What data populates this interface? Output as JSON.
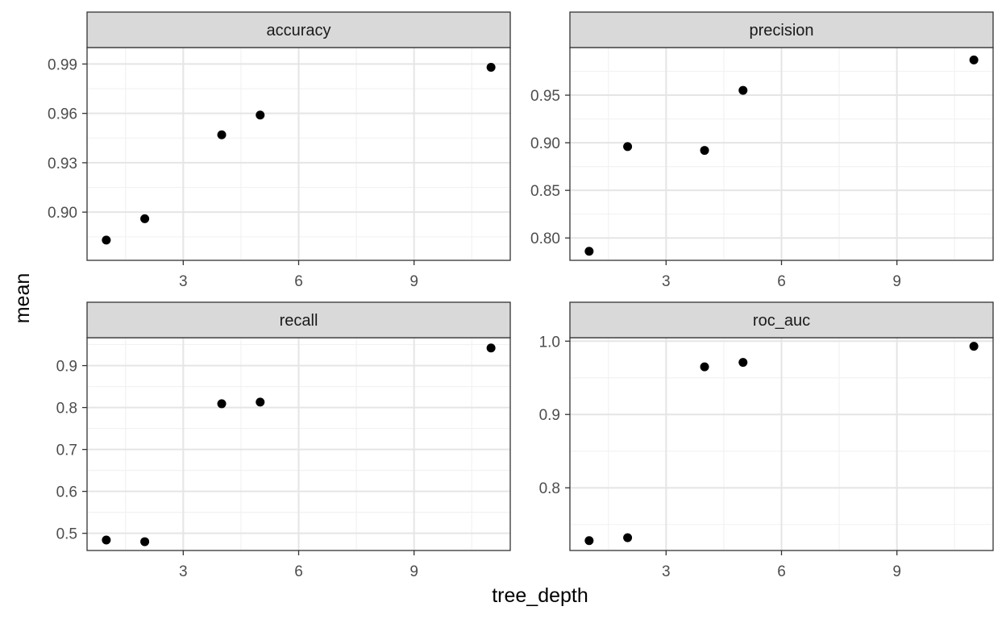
{
  "chart_data": {
    "type": "scatter",
    "xlabel": "tree_depth",
    "ylabel": "mean",
    "grid": true,
    "colors": {
      "point": "#000000",
      "strip_fill": "#d9d9d9",
      "strip_border": "#333333",
      "grid_major": "#e5e5e5",
      "grid_minor": "#f2f2f2",
      "panel_border": "#333333",
      "tick_text": "#4d4d4d"
    },
    "panels": [
      {
        "title": "accuracy",
        "xlim": [
          0.5,
          11.5
        ],
        "ylim": [
          0.8707,
          1.0
        ],
        "xticks": [
          3,
          6,
          9
        ],
        "xtick_labels": [
          "3",
          "6",
          "9"
        ],
        "yticks": [
          0.9,
          0.93,
          0.96,
          0.99
        ],
        "ytick_labels": [
          "0.90",
          "0.93",
          "0.96",
          "0.99"
        ],
        "x": [
          1,
          2,
          4,
          5,
          11
        ],
        "y": [
          0.883,
          0.896,
          0.947,
          0.959,
          0.988
        ]
      },
      {
        "title": "precision",
        "xlim": [
          0.5,
          11.5
        ],
        "ylim": [
          0.7765,
          1.0
        ],
        "xticks": [
          3,
          6,
          9
        ],
        "xtick_labels": [
          "3",
          "6",
          "9"
        ],
        "yticks": [
          0.8,
          0.85,
          0.9,
          0.95
        ],
        "ytick_labels": [
          "0.80",
          "0.85",
          "0.90",
          "0.95"
        ],
        "x": [
          1,
          2,
          4,
          5,
          11
        ],
        "y": [
          0.786,
          0.896,
          0.892,
          0.955,
          0.987
        ]
      },
      {
        "title": "recall",
        "xlim": [
          0.5,
          11.5
        ],
        "ylim": [
          0.459,
          0.9665
        ],
        "xticks": [
          3,
          6,
          9
        ],
        "xtick_labels": [
          "3",
          "6",
          "9"
        ],
        "yticks": [
          0.5,
          0.6,
          0.7,
          0.8,
          0.9
        ],
        "ytick_labels": [
          "0.5",
          "0.6",
          "0.7",
          "0.8",
          "0.9"
        ],
        "x": [
          1,
          2,
          4,
          5,
          11
        ],
        "y": [
          0.484,
          0.48,
          0.809,
          0.813,
          0.942
        ]
      },
      {
        "title": "roc_auc",
        "xlim": [
          0.5,
          11.5
        ],
        "ylim": [
          0.7145,
          1.0047
        ],
        "xticks": [
          3,
          6,
          9
        ],
        "xtick_labels": [
          "3",
          "6",
          "9"
        ],
        "yticks": [
          0.8,
          0.9,
          1.0
        ],
        "ytick_labels": [
          "0.8",
          "0.9",
          "1.0"
        ],
        "x": [
          1,
          2,
          4,
          5,
          11
        ],
        "y": [
          0.728,
          0.732,
          0.965,
          0.971,
          0.993
        ]
      }
    ]
  }
}
